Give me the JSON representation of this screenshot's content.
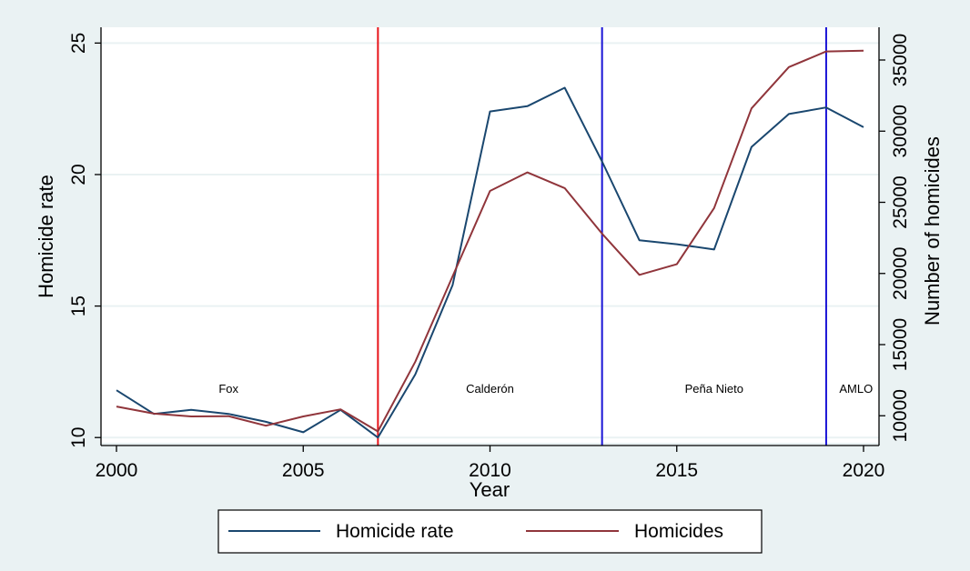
{
  "chart_data": {
    "type": "line",
    "xlabel": "Year",
    "ylabel_left": "Homicide rate",
    "ylabel_right": "Number of homicides",
    "xlim": [
      2000,
      2020
    ],
    "ylim_left": [
      9.8,
      25.6
    ],
    "ylim_right": [
      8100,
      37300
    ],
    "x_ticks": [
      "2000",
      "2005",
      "2010",
      "2015",
      "2020"
    ],
    "y_left_ticks": [
      "10",
      "15",
      "20",
      "25"
    ],
    "y_right_ticks": [
      "10000",
      "15000",
      "20000",
      "25000",
      "30000",
      "35000"
    ],
    "grid": true,
    "legend_position": "bottom",
    "x": [
      2000,
      2001,
      2002,
      2003,
      2004,
      2005,
      2006,
      2007,
      2008,
      2009,
      2010,
      2011,
      2012,
      2013,
      2014,
      2015,
      2016,
      2017,
      2018,
      2019,
      2020
    ],
    "series": [
      {
        "name": "Homicide rate",
        "axis": "left",
        "color": "#1a476f",
        "values": [
          11.8,
          10.9,
          11.05,
          10.9,
          10.6,
          10.2,
          11.05,
          10.0,
          12.4,
          15.8,
          22.4,
          22.6,
          23.3,
          20.5,
          17.5,
          17.35,
          17.15,
          21.05,
          22.3,
          22.55,
          21.8
        ]
      },
      {
        "name": "Homicides",
        "axis": "right",
        "color": "#90353b",
        "values": [
          10650,
          10150,
          9950,
          9970,
          9300,
          9950,
          10450,
          8900,
          13800,
          19800,
          25800,
          27100,
          26000,
          22800,
          19900,
          20650,
          24600,
          31600,
          34500,
          35600,
          35650
        ]
      }
    ],
    "vlines": [
      {
        "x": 2007,
        "color": "#e8151b"
      },
      {
        "x": 2013,
        "color": "#1a14d6"
      },
      {
        "x": 2019,
        "color": "#1a14d6"
      }
    ],
    "annotations": [
      {
        "text": "Fox",
        "x": 2003
      },
      {
        "text": "Calderón",
        "x": 2010
      },
      {
        "text": "Peña Nieto",
        "x": 2016
      },
      {
        "text": "AMLO",
        "x": 2019.8
      }
    ]
  }
}
